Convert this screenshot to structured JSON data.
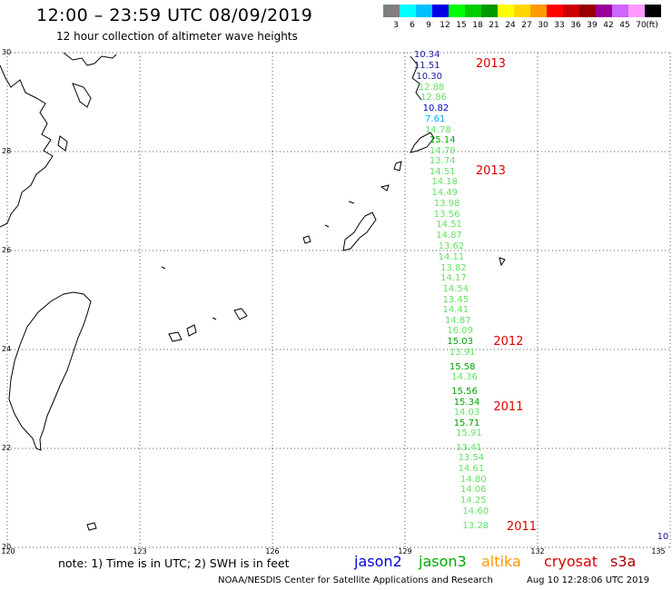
{
  "header": {
    "title": "12:00 – 23:59 UTC 08/09/2019",
    "subtitle": "12 hour collection of altimeter wave heights"
  },
  "color_scale": {
    "unit": "(ft)",
    "bins": [
      {
        "label": "3",
        "color": "#7f7f7f"
      },
      {
        "label": "6",
        "color": "#00ffff"
      },
      {
        "label": "9",
        "color": "#00bfff"
      },
      {
        "label": "12",
        "color": "#0000e6"
      },
      {
        "label": "15",
        "color": "#00ff00"
      },
      {
        "label": "18",
        "color": "#00cc00"
      },
      {
        "label": "21",
        "color": "#009900"
      },
      {
        "label": "24",
        "color": "#ffff00"
      },
      {
        "label": "27",
        "color": "#ffd700"
      },
      {
        "label": "30",
        "color": "#ff9900"
      },
      {
        "label": "33",
        "color": "#ff0000"
      },
      {
        "label": "36",
        "color": "#cc0000"
      },
      {
        "label": "39",
        "color": "#990000"
      },
      {
        "label": "42",
        "color": "#990099"
      },
      {
        "label": "45",
        "color": "#cc66ff"
      },
      {
        "label": "70",
        "color": "#ff99ff"
      },
      {
        "label": "",
        "color": "#000000"
      }
    ]
  },
  "axes": {
    "lat_labels": [
      "30",
      "28",
      "26",
      "24",
      "22",
      "20"
    ],
    "lon_labels": [
      "120",
      "123",
      "126",
      "129",
      "132",
      "135"
    ]
  },
  "observations": [
    {
      "lat": 29.95,
      "lon": 129.45,
      "swh": "10.34",
      "color": "#1a1aa0"
    },
    {
      "lat": 29.72,
      "lon": 129.45,
      "swh": "11.51",
      "color": "#1a1aa0"
    },
    {
      "lat": 29.5,
      "lon": 129.5,
      "swh": "10.30",
      "color": "#1a1aa0"
    },
    {
      "lat": 29.28,
      "lon": 129.55,
      "swh": "12.88",
      "color": "#66e066"
    },
    {
      "lat": 29.08,
      "lon": 129.6,
      "swh": "12.86",
      "color": "#66e066"
    },
    {
      "lat": 28.86,
      "lon": 129.65,
      "swh": "10.82",
      "color": "#0000cc"
    },
    {
      "lat": 28.65,
      "lon": 129.7,
      "swh": "7.61",
      "color": "#00aaff"
    },
    {
      "lat": 28.43,
      "lon": 129.7,
      "swh": "14.78",
      "color": "#66e066"
    },
    {
      "lat": 28.22,
      "lon": 129.8,
      "swh": "15.14",
      "color": "#00b000"
    },
    {
      "lat": 28.0,
      "lon": 129.8,
      "swh": "14.79",
      "color": "#66e066"
    },
    {
      "lat": 27.79,
      "lon": 129.8,
      "swh": "13.74",
      "color": "#66e066"
    },
    {
      "lat": 27.58,
      "lon": 129.8,
      "swh": "14.51",
      "color": "#66e066"
    },
    {
      "lat": 27.37,
      "lon": 129.85,
      "swh": "14.18",
      "color": "#66e066"
    },
    {
      "lat": 27.15,
      "lon": 129.85,
      "swh": "14.49",
      "color": "#66e066"
    },
    {
      "lat": 26.94,
      "lon": 129.9,
      "swh": "13.98",
      "color": "#66e066"
    },
    {
      "lat": 26.72,
      "lon": 129.9,
      "swh": "13.56",
      "color": "#66e066"
    },
    {
      "lat": 26.51,
      "lon": 129.95,
      "swh": "14.51",
      "color": "#66e066"
    },
    {
      "lat": 26.29,
      "lon": 129.95,
      "swh": "14.87",
      "color": "#66e066"
    },
    {
      "lat": 26.07,
      "lon": 130.0,
      "swh": "13.62",
      "color": "#66e066"
    },
    {
      "lat": 25.86,
      "lon": 130.0,
      "swh": "14.11",
      "color": "#66e066"
    },
    {
      "lat": 25.64,
      "lon": 130.05,
      "swh": "13.82",
      "color": "#66e066"
    },
    {
      "lat": 25.43,
      "lon": 130.05,
      "swh": "14.17",
      "color": "#66e066"
    },
    {
      "lat": 25.21,
      "lon": 130.1,
      "swh": "14.54",
      "color": "#66e066"
    },
    {
      "lat": 25.0,
      "lon": 130.1,
      "swh": "13.45",
      "color": "#66e066"
    },
    {
      "lat": 24.78,
      "lon": 130.1,
      "swh": "14.41",
      "color": "#66e066"
    },
    {
      "lat": 24.57,
      "lon": 130.15,
      "swh": "14.87",
      "color": "#66e066"
    },
    {
      "lat": 24.36,
      "lon": 130.2,
      "swh": "16.09",
      "color": "#66e066"
    },
    {
      "lat": 24.15,
      "lon": 130.2,
      "swh": "15.03",
      "color": "#00a000"
    },
    {
      "lat": 23.93,
      "lon": 130.25,
      "swh": "13.91",
      "color": "#66e066"
    },
    {
      "lat": 23.64,
      "lon": 130.25,
      "swh": "15.58",
      "color": "#00a000"
    },
    {
      "lat": 23.43,
      "lon": 130.3,
      "swh": "14.36",
      "color": "#66e066"
    },
    {
      "lat": 23.13,
      "lon": 130.3,
      "swh": "15.56",
      "color": "#00a000"
    },
    {
      "lat": 22.92,
      "lon": 130.35,
      "swh": "15.34",
      "color": "#00a000"
    },
    {
      "lat": 22.71,
      "lon": 130.35,
      "swh": "14.03",
      "color": "#66e066"
    },
    {
      "lat": 22.5,
      "lon": 130.35,
      "swh": "15.71",
      "color": "#00a000"
    },
    {
      "lat": 22.29,
      "lon": 130.4,
      "swh": "15.91",
      "color": "#66e066"
    },
    {
      "lat": 22.0,
      "lon": 130.4,
      "swh": "13.41",
      "color": "#66e066"
    },
    {
      "lat": 21.79,
      "lon": 130.45,
      "swh": "13.54",
      "color": "#66e066"
    },
    {
      "lat": 21.57,
      "lon": 130.45,
      "swh": "14.61",
      "color": "#66e066"
    },
    {
      "lat": 21.36,
      "lon": 130.5,
      "swh": "14.80",
      "color": "#66e066"
    },
    {
      "lat": 21.15,
      "lon": 130.5,
      "swh": "14.06",
      "color": "#66e066"
    },
    {
      "lat": 20.93,
      "lon": 130.5,
      "swh": "14.25",
      "color": "#66e066"
    },
    {
      "lat": 20.71,
      "lon": 130.55,
      "swh": "14.60",
      "color": "#66e066"
    },
    {
      "lat": 20.43,
      "lon": 130.55,
      "swh": "13.28",
      "color": "#66e066"
    },
    {
      "lat": 20.2,
      "lon": 134.95,
      "swh": "10",
      "color": "#1a1aa0"
    }
  ],
  "year_labels": [
    {
      "lat": 29.76,
      "lon": 130.6,
      "text": "2013"
    },
    {
      "lat": 27.6,
      "lon": 130.6,
      "text": "2013"
    },
    {
      "lat": 24.14,
      "lon": 131.0,
      "text": "2012"
    },
    {
      "lat": 22.82,
      "lon": 131.0,
      "text": "2011"
    },
    {
      "lat": 20.4,
      "lon": 131.3,
      "text": "2011"
    }
  ],
  "footer": {
    "note": "note: 1) Time is in UTC; 2) SWH is in feet",
    "satellites": [
      {
        "name": "jason2",
        "color": "#0000dd"
      },
      {
        "name": "jason3",
        "color": "#00aa00"
      },
      {
        "name": "altika",
        "color": "#ff9900"
      },
      {
        "name": "cryosat",
        "color": "#dd0000"
      },
      {
        "name": "s3a",
        "color": "#aa0000"
      }
    ],
    "credit": "NOAA/NESDIS Center for Satellite Applications and Research",
    "timestamp": "Aug 10 12:28:06 UTC 2019"
  }
}
